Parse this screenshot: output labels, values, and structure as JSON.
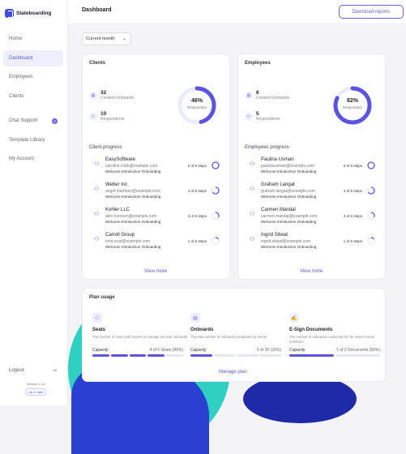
{
  "brand": {
    "name": "Slateboarding"
  },
  "sidebar": {
    "items": [
      {
        "label": "Home"
      },
      {
        "label": "Dashboard",
        "active": true
      },
      {
        "label": "Employees"
      },
      {
        "label": "Clients"
      },
      {
        "label": "Chat Support",
        "badge": "2"
      },
      {
        "label": "Template Library"
      },
      {
        "label": "My Account"
      }
    ],
    "logout": "Logout",
    "version": "Version 1.0.2",
    "status": "Up to date"
  },
  "header": {
    "title": "Dashboard",
    "download_label": "Download reports"
  },
  "filter": {
    "selected": "Current month"
  },
  "clients": {
    "title": "Clients",
    "onboarded_count": "32",
    "onboarded_label": "Created Onboards",
    "respondents_count": "10",
    "respondents_label": "Respondents",
    "donut_pct": "46%",
    "donut_value": 0.46,
    "donut_label": "Responders",
    "progress_title": "Client progress",
    "rows": [
      {
        "name": "EasySoftware",
        "email": "caroline.cook@example.com",
        "workflow": "Welcome Introduction Onboarding",
        "steps": "6 of 6 steps",
        "done": 6,
        "total": 6
      },
      {
        "name": "Weber Inc",
        "email": "angel.martinez@example.com",
        "workflow": "Welcome Introduction Onboarding",
        "steps": "4 of 6 steps",
        "done": 4,
        "total": 6
      },
      {
        "name": "Kohler LLC",
        "email": "alex.harrison@example.com",
        "workflow": "Welcome Introduction Onboarding",
        "steps": "2 of 6 steps",
        "done": 2,
        "total": 6
      },
      {
        "name": "Carroll Group",
        "email": "irina.cruz@example.com",
        "workflow": "Welcome Introduction Onboarding",
        "steps": "1 of 6 steps",
        "done": 1,
        "total": 6
      }
    ],
    "view_more": "View more"
  },
  "employees": {
    "title": "Employees",
    "onboarded_count": "6",
    "onboarded_label": "Created Onboards",
    "respondents_count": "5",
    "respondents_label": "Respondents",
    "donut_pct": "82%",
    "donut_value": 0.82,
    "donut_label": "Responders",
    "progress_title": "Employees progress",
    "rows": [
      {
        "name": "Paulina Usman",
        "email": "paulinausman@example.com",
        "workflow": "Welcome Introduction Onboarding",
        "steps": "6 of 6 steps",
        "done": 6,
        "total": 6
      },
      {
        "name": "Graham Langat",
        "email": "graham.langat@example.com",
        "workflow": "Welcome Introduction Onboarding",
        "steps": "4 of 6 steps",
        "done": 4,
        "total": 6
      },
      {
        "name": "Carmen Mandal",
        "email": "carmen.mandal@example.com",
        "workflow": "Welcome Introduction Onboarding",
        "steps": "2 of 6 steps",
        "done": 2,
        "total": 6
      },
      {
        "name": "Ingrid Sitwat",
        "email": "ingrid.sitwat@example.com",
        "workflow": "Welcome Introduction Onboarding",
        "steps": "1 of 6 steps",
        "done": 1,
        "total": 6
      }
    ],
    "view_more": "View more"
  },
  "plan": {
    "title": "Plan usage",
    "items": [
      {
        "title": "Seats",
        "desc": "The number of users with access to manage and edit onboards.",
        "cap_label": "Capacity",
        "cap_value": "4 of 5 Seats (80%)",
        "fraction": 0.8
      },
      {
        "title": "Onboards",
        "desc": "The total number of onboards completed by clients.",
        "cap_label": "Capacity",
        "cap_value": "5 of 20 (25%)",
        "fraction": 0.25
      },
      {
        "title": "E-Sign Documents",
        "desc": "The number of onboards conducted for the owner's team members.",
        "cap_label": "Capacity",
        "cap_value": "1 of 2 Documents (50%)",
        "fraction": 0.5
      }
    ],
    "manage": "Manage plan"
  },
  "colors": {
    "accent": "#6b63e8",
    "teal": "#2fd0c1",
    "navy": "#2b3fd3"
  }
}
